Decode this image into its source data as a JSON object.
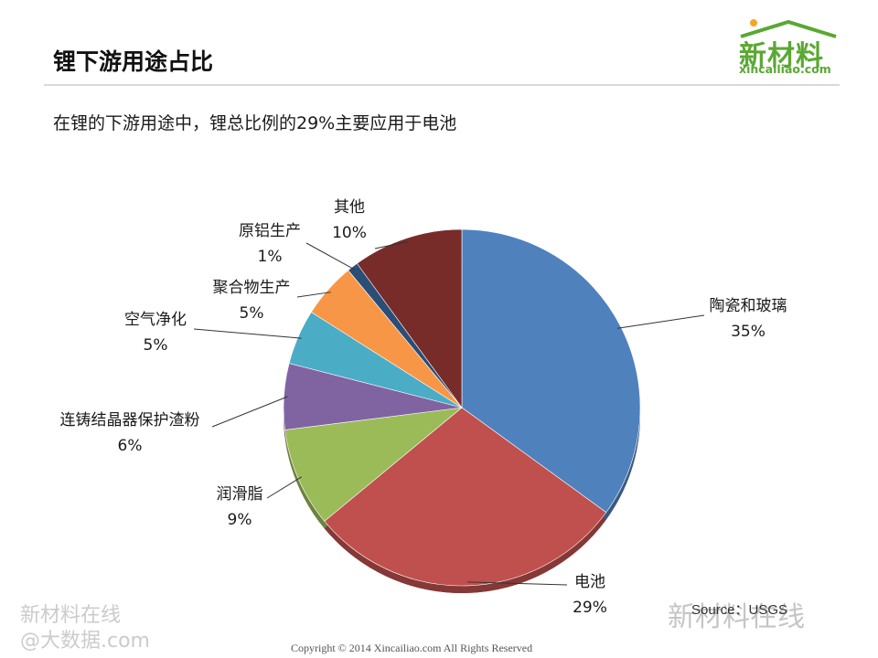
{
  "page": {
    "title": "锂下游用途占比",
    "subtitle": "在锂的下游用途中，锂总比例的29%主要应用于电池",
    "logo": {
      "brand": "新材料",
      "site": "xincailiao.com"
    },
    "source": "Source：USGS",
    "footer": "Copyright © 2014   Xincailiao.com    All Rights Reserved",
    "watermark_left_1": "新材料在线",
    "watermark_left_2": "@大数据.com",
    "watermark_right": "新材料在线"
  },
  "chart_data": {
    "type": "pie",
    "title": "",
    "unit": "%",
    "slices": [
      {
        "label": "陶瓷和玻璃",
        "value": 35,
        "value_label": "35%",
        "color": "#4f81bd"
      },
      {
        "label": "电池",
        "value": 29,
        "value_label": "29%",
        "color": "#c0504d"
      },
      {
        "label": "润滑脂",
        "value": 9,
        "value_label": "9%",
        "color": "#9bbb59"
      },
      {
        "label": "连铸结晶器保护渣粉",
        "value": 6,
        "value_label": "6%",
        "color": "#8064a2"
      },
      {
        "label": "空气净化",
        "value": 5,
        "value_label": "5%",
        "color": "#4bacc6"
      },
      {
        "label": "聚合物生产",
        "value": 5,
        "value_label": "5%",
        "color": "#f79646"
      },
      {
        "label": "原铝生产",
        "value": 1,
        "value_label": "1%",
        "color": "#2c4d75"
      },
      {
        "label": "其他",
        "value": 10,
        "value_label": "10%",
        "color": "#772c2a"
      }
    ]
  }
}
